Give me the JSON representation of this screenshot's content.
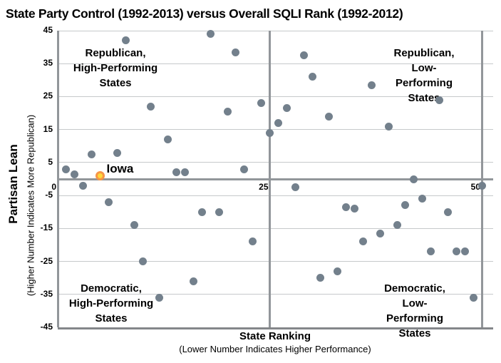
{
  "chart_data": {
    "type": "scatter",
    "title": "State Party Control (1992-2013) versus Overall SQLI Rank (1992-2012)",
    "xlabel": "State Ranking",
    "xlabel_note": "(Lower Number Indicates Higher Performance)",
    "ylabel": "Partisan Lean",
    "ylabel_note": "(Higher Number Indicates More Republican)",
    "xlim": [
      0,
      51.5
    ],
    "ylim": [
      -45,
      45
    ],
    "x_ticks": [
      0,
      25,
      50
    ],
    "y_ticks": [
      45,
      35,
      25,
      15,
      5,
      -5,
      -15,
      -25,
      -35,
      -45
    ],
    "grid": "light horizontal gridlines every 10; heavy gray lines at x=0, x=25, x=50 and y=0",
    "legend": "none",
    "colors": {
      "point": "#73808C",
      "highlight_fill": "#FFD83B",
      "highlight_ring": "#F79646",
      "gridline": "#C6C9CB",
      "axis_line": "#92969A"
    },
    "quadrant_labels": [
      {
        "id": "republican-high-performing",
        "text": "Republican,\nHigh-Performing\nStates"
      },
      {
        "id": "republican-low-performing",
        "text": "Republican,\nLow-Performing\nStates"
      },
      {
        "id": "democratic-high-performing",
        "text": "Democratic,\nHigh-Performing\nStates"
      },
      {
        "id": "democratic-low-performing",
        "text": "Democratic,\nLow-Performing\nStates"
      }
    ],
    "highlight_point": {
      "label": "Iowa",
      "x": 5,
      "y": 1
    },
    "points": [
      [
        18,
        44
      ],
      [
        8,
        42
      ],
      [
        21,
        38.5
      ],
      [
        24,
        23
      ],
      [
        11,
        22
      ],
      [
        20,
        20.5
      ],
      [
        25,
        14
      ],
      [
        13,
        12
      ],
      [
        7,
        8
      ],
      [
        4,
        7.5
      ],
      [
        1,
        3
      ],
      [
        22,
        3
      ],
      [
        14,
        2
      ],
      [
        15,
        2
      ],
      [
        2,
        1.5
      ],
      [
        29,
        37.5
      ],
      [
        30,
        31
      ],
      [
        37,
        28.5
      ],
      [
        45,
        24
      ],
      [
        27,
        21.5
      ],
      [
        32,
        19
      ],
      [
        26,
        17
      ],
      [
        39,
        16
      ],
      [
        42,
        0
      ],
      [
        3,
        -2
      ],
      [
        6,
        -7
      ],
      [
        17,
        -10
      ],
      [
        19,
        -10
      ],
      [
        9,
        -14
      ],
      [
        23,
        -19
      ],
      [
        10,
        -25
      ],
      [
        16,
        -31
      ],
      [
        12,
        -36
      ],
      [
        28,
        -2.5
      ],
      [
        50,
        -2
      ],
      [
        43,
        -6
      ],
      [
        41,
        -8
      ],
      [
        34,
        -8.5
      ],
      [
        35,
        -9
      ],
      [
        46,
        -10
      ],
      [
        40,
        -14
      ],
      [
        38,
        -16.5
      ],
      [
        36,
        -19
      ],
      [
        44,
        -22
      ],
      [
        47,
        -22
      ],
      [
        48,
        -22
      ],
      [
        33,
        -28
      ],
      [
        31,
        -30
      ],
      [
        49,
        -36
      ]
    ]
  }
}
